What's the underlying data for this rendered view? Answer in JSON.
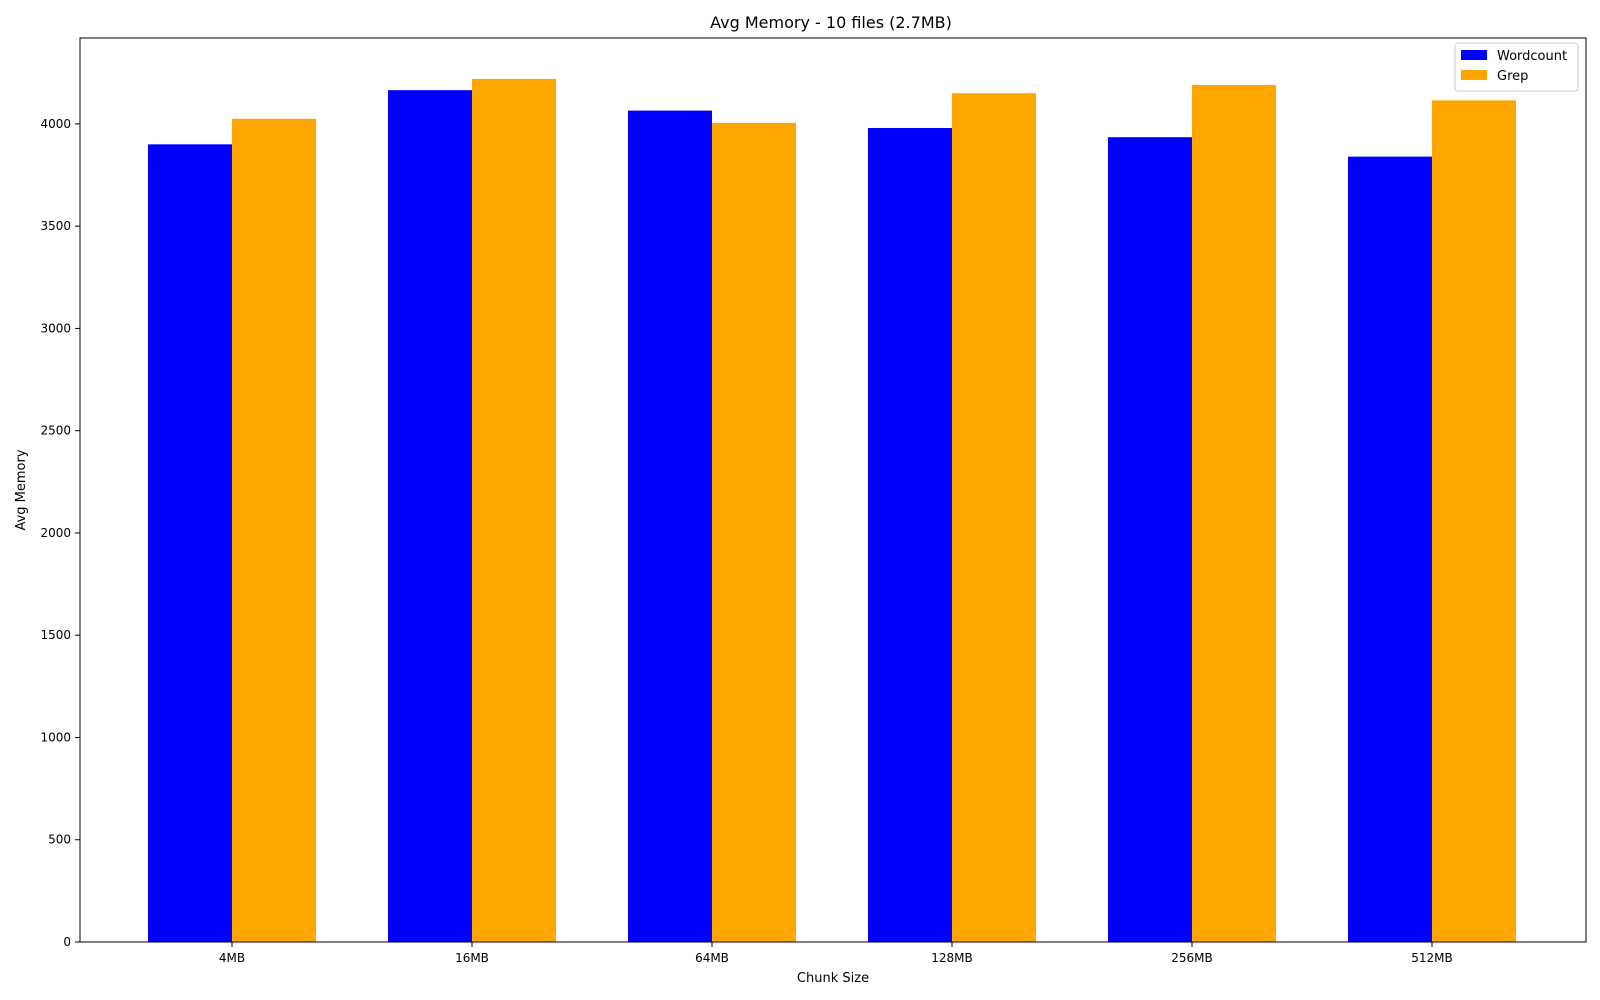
{
  "chart_data": {
    "type": "bar",
    "title": "Avg Memory - 10 files (2.7MB)",
    "xlabel": "Chunk Size",
    "ylabel": "Avg Memory",
    "categories": [
      "4MB",
      "16MB",
      "64MB",
      "128MB",
      "256MB",
      "512MB"
    ],
    "series": [
      {
        "name": "Wordcount",
        "color": "#0000ff",
        "values": [
          3900,
          4165,
          4065,
          3980,
          3935,
          3840
        ]
      },
      {
        "name": "Grep",
        "color": "#ffa500",
        "values": [
          4025,
          4220,
          4005,
          4150,
          4190,
          4115
        ]
      }
    ],
    "ylim": [
      0,
      4420
    ],
    "yticks": [
      0,
      500,
      1000,
      1500,
      2000,
      2500,
      3000,
      3500,
      4000
    ],
    "grid": false,
    "legend_position": "top-right"
  }
}
